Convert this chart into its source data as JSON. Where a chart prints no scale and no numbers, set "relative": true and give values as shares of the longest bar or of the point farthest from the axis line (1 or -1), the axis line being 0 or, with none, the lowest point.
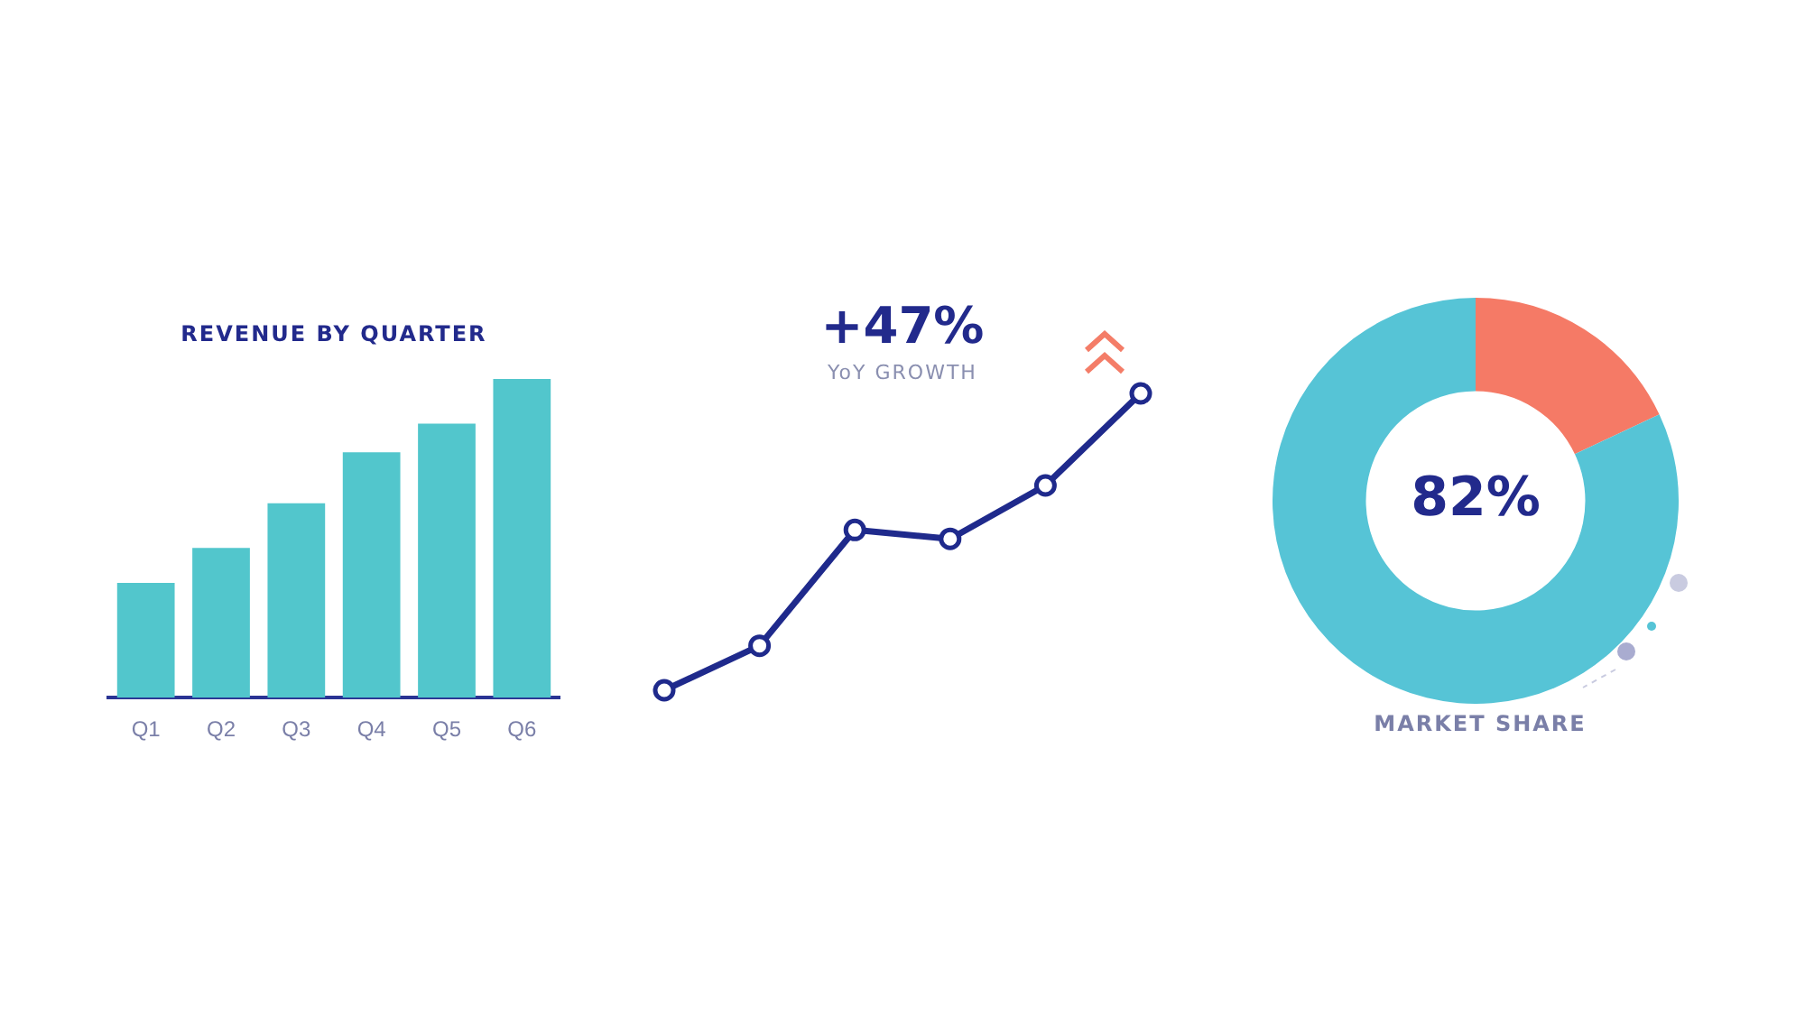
{
  "chart_data": [
    {
      "type": "bar",
      "title": "REVENUE BY QUARTER",
      "categories": [
        "Q1",
        "Q2",
        "Q3",
        "Q4",
        "Q5",
        "Q6"
      ],
      "values": [
        0.36,
        0.47,
        0.61,
        0.77,
        0.86,
        1
      ],
      "color": "#52c6cc",
      "relative": true
    },
    {
      "type": "line",
      "title": "+47%",
      "subtitle": "YoY GROWTH",
      "categories": [
        null,
        null,
        null,
        null,
        null,
        null
      ],
      "values": [
        0,
        0.15,
        0.54,
        0.51,
        0.69,
        1
      ],
      "color": "#1f2a8c",
      "relative": true,
      "marker": "circle"
    },
    {
      "type": "donut",
      "title": "MARKET SHARE",
      "categories": [
        null,
        null
      ],
      "values": [
        18,
        82
      ],
      "colors": [
        "#f57a66",
        "#56c4d6"
      ],
      "annotations": [
        "82%"
      ]
    }
  ]
}
